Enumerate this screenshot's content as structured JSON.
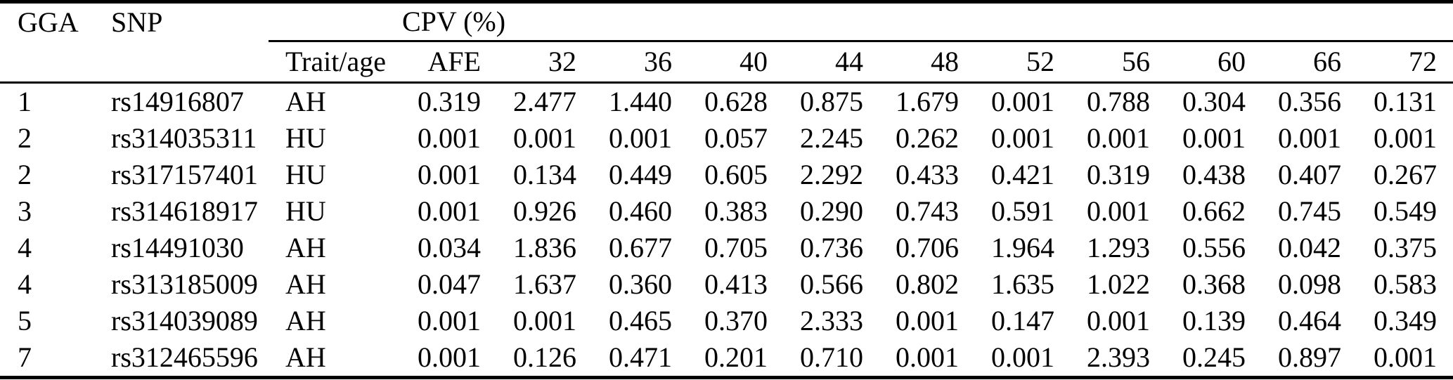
{
  "table": {
    "group_header": "CPV (%)",
    "left_headers": [
      "GGA",
      "SNP"
    ],
    "sub_headers": [
      "Trait/age",
      "AFE",
      "32",
      "36",
      "40",
      "44",
      "48",
      "52",
      "56",
      "60",
      "66",
      "72"
    ],
    "rows": [
      [
        "1",
        "rs14916807",
        "AH",
        "0.319",
        "2.477",
        "1.440",
        "0.628",
        "0.875",
        "1.679",
        "0.001",
        "0.788",
        "0.304",
        "0.356",
        "0.131"
      ],
      [
        "2",
        "rs314035311",
        "HU",
        "0.001",
        "0.001",
        "0.001",
        "0.057",
        "2.245",
        "0.262",
        "0.001",
        "0.001",
        "0.001",
        "0.001",
        "0.001"
      ],
      [
        "2",
        "rs317157401",
        "HU",
        "0.001",
        "0.134",
        "0.449",
        "0.605",
        "2.292",
        "0.433",
        "0.421",
        "0.319",
        "0.438",
        "0.407",
        "0.267"
      ],
      [
        "3",
        "rs314618917",
        "HU",
        "0.001",
        "0.926",
        "0.460",
        "0.383",
        "0.290",
        "0.743",
        "0.591",
        "0.001",
        "0.662",
        "0.745",
        "0.549"
      ],
      [
        "4",
        "rs14491030",
        "AH",
        "0.034",
        "1.836",
        "0.677",
        "0.705",
        "0.736",
        "0.706",
        "1.964",
        "1.293",
        "0.556",
        "0.042",
        "0.375"
      ],
      [
        "4",
        "rs313185009",
        "AH",
        "0.047",
        "1.637",
        "0.360",
        "0.413",
        "0.566",
        "0.802",
        "1.635",
        "1.022",
        "0.368",
        "0.098",
        "0.583"
      ],
      [
        "5",
        "rs314039089",
        "AH",
        "0.001",
        "0.001",
        "0.465",
        "0.370",
        "2.333",
        "0.001",
        "0.147",
        "0.001",
        "0.139",
        "0.464",
        "0.349"
      ],
      [
        "7",
        "rs312465596",
        "AH",
        "0.001",
        "0.126",
        "0.471",
        "0.201",
        "0.710",
        "0.001",
        "0.001",
        "2.393",
        "0.245",
        "0.897",
        "0.001"
      ]
    ]
  }
}
